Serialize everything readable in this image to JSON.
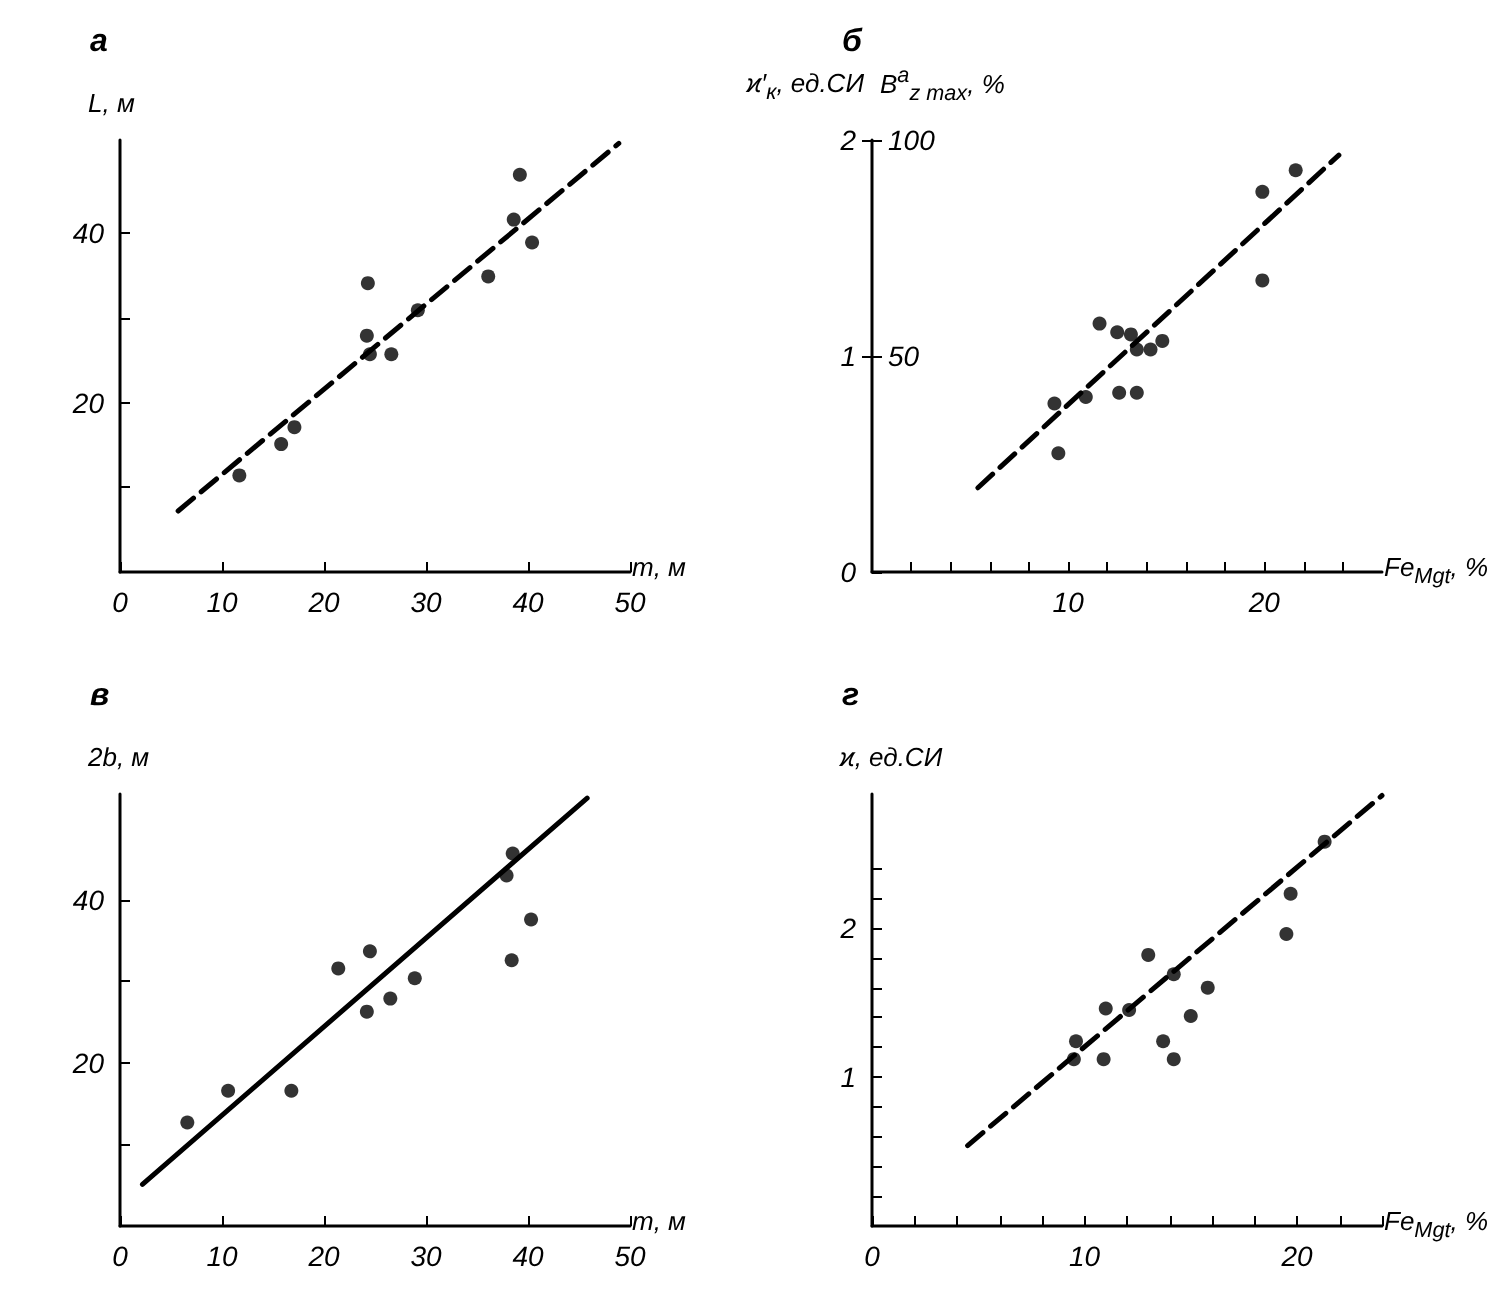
{
  "chart_data": [
    {
      "type": "scatter",
      "title": "а",
      "xlabel": "m, м",
      "ylabel": "L, м",
      "xlim": [
        0,
        50
      ],
      "ylim": [
        0,
        51
      ],
      "xticks": [
        0,
        10,
        20,
        30,
        40,
        50
      ],
      "yticks": [
        {
          "value": 10,
          "label": null
        },
        20,
        {
          "value": 30,
          "label": null
        },
        40
      ],
      "grid": false,
      "series": [
        {
          "type": "scatter",
          "color": "#000000",
          "marker": "circle",
          "x": [
            11.7,
            15.8,
            17.1,
            24.3,
            24.2,
            24.5,
            26.6,
            29.2,
            36.1,
            38.6,
            39.2,
            40.4
          ],
          "values": [
            11.4,
            15.1,
            17.1,
            34.1,
            27.9,
            25.7,
            25.7,
            30.9,
            34.9,
            41.6,
            46.9,
            38.9
          ]
        },
        {
          "type": "line",
          "color": "#000000",
          "marker": "none",
          "line_style": "dashed",
          "x": [
            5.7,
            48.9
          ],
          "values": [
            7.2,
            50.6
          ]
        }
      ]
    },
    {
      "type": "scatter",
      "title": "б",
      "xlabel": "Fe$_{Mgt}$, %",
      "ylabel": "ϰ′$_{к}$, ед.СИ",
      "y2label": "B$^{a}$$_{z max}$, %",
      "xlim": [
        0,
        26
      ],
      "ylim": [
        0,
        2
      ],
      "y2lim": [
        0,
        100
      ],
      "xticks": [
        {
          "value": 2,
          "label": null
        },
        {
          "value": 4,
          "label": null
        },
        {
          "value": 6,
          "label": null
        },
        {
          "value": 8,
          "label": null
        },
        10,
        {
          "value": 12,
          "label": null
        },
        {
          "value": 14,
          "label": null
        },
        {
          "value": 16,
          "label": null
        },
        {
          "value": 18,
          "label": null
        },
        20,
        {
          "value": 22,
          "label": null
        },
        {
          "value": 24,
          "label": null
        }
      ],
      "yticks": [
        0,
        1,
        2
      ],
      "y2ticks": [
        50,
        100
      ],
      "grid": false,
      "series": [
        {
          "type": "scatter",
          "color": "#000000",
          "marker": "circle",
          "x": [
            9.3,
            9.5,
            10.9,
            11.6,
            12.5,
            13.2,
            12.6,
            13.5,
            13.5,
            14.2,
            14.8,
            19.9,
            19.9,
            21.6
          ],
          "values": [
            0.78,
            0.55,
            0.81,
            1.15,
            1.11,
            1.1,
            0.83,
            0.83,
            1.03,
            1.03,
            1.07,
            1.76,
            1.35,
            1.86
          ]
        },
        {
          "type": "line",
          "color": "#000000",
          "marker": "none",
          "line_style": "dashed",
          "x": [
            5.4,
            23.8
          ],
          "values": [
            0.39,
            1.93
          ]
        }
      ]
    },
    {
      "type": "scatter",
      "title": "в",
      "xlabel": "m, м",
      "ylabel": "2b, м",
      "xlim": [
        0,
        50
      ],
      "ylim": [
        0,
        53
      ],
      "xticks": [
        0,
        10,
        20,
        30,
        40,
        50
      ],
      "yticks": [
        {
          "value": 10,
          "label": null
        },
        20,
        {
          "value": 30,
          "label": null
        },
        40
      ],
      "grid": false,
      "series": [
        {
          "type": "scatter",
          "color": "#000000",
          "marker": "circle",
          "x": [
            6.6,
            10.6,
            16.8,
            21.4,
            24.5,
            24.2,
            26.5,
            28.9,
            37.9,
            38.5,
            38.4,
            40.3
          ],
          "values": [
            12.7,
            16.6,
            16.6,
            31.6,
            33.7,
            26.3,
            27.9,
            30.4,
            43.0,
            45.7,
            32.6,
            37.6
          ]
        },
        {
          "type": "line",
          "color": "#000000",
          "marker": "none",
          "line_style": "solid",
          "x": [
            2.2,
            45.8
          ],
          "values": [
            5.1,
            52.5
          ]
        }
      ]
    },
    {
      "type": "scatter",
      "title": "г",
      "xlabel": "Fe$_{Mgt}$, %",
      "ylabel": "ϰ, ед.СИ",
      "xlim": [
        0,
        24
      ],
      "ylim": [
        0,
        2.9
      ],
      "xticks": [
        0,
        {
          "value": 2,
          "label": null
        },
        {
          "value": 4,
          "label": null
        },
        {
          "value": 6,
          "label": null
        },
        {
          "value": 8,
          "label": null
        },
        10,
        {
          "value": 12,
          "label": null
        },
        {
          "value": 14,
          "label": null
        },
        {
          "value": 16,
          "label": null
        },
        {
          "value": 18,
          "label": null
        },
        20,
        {
          "value": 22,
          "label": null
        },
        {
          "value": 24,
          "label": null
        }
      ],
      "yticks": [
        {
          "value": 0.2,
          "label": null
        },
        {
          "value": 0.4,
          "label": null
        },
        {
          "value": 0.6,
          "label": null
        },
        {
          "value": 0.8,
          "label": null
        },
        1,
        {
          "value": 1.2,
          "label": null
        },
        {
          "value": 1.4,
          "label": null
        },
        {
          "value": 1.6,
          "label": null
        },
        {
          "value": 1.8,
          "label": null
        },
        2,
        {
          "value": 2.2,
          "label": null
        },
        {
          "value": 2.4,
          "label": null
        }
      ],
      "grid": false,
      "series": [
        {
          "type": "scatter",
          "color": "#000000",
          "marker": "circle",
          "x": [
            9.5,
            9.6,
            10.9,
            11.0,
            12.1,
            13.0,
            13.7,
            14.2,
            14.2,
            15.0,
            15.8,
            19.5,
            19.7,
            21.3
          ],
          "values": [
            1.12,
            1.24,
            1.12,
            1.46,
            1.45,
            1.82,
            1.24,
            1.12,
            1.69,
            1.41,
            1.6,
            1.96,
            2.23,
            2.58
          ]
        },
        {
          "type": "line",
          "color": "#000000",
          "marker": "none",
          "line_style": "dashed",
          "x": [
            4.5,
            24.0
          ],
          "values": [
            0.54,
            2.89
          ]
        }
      ]
    }
  ]
}
